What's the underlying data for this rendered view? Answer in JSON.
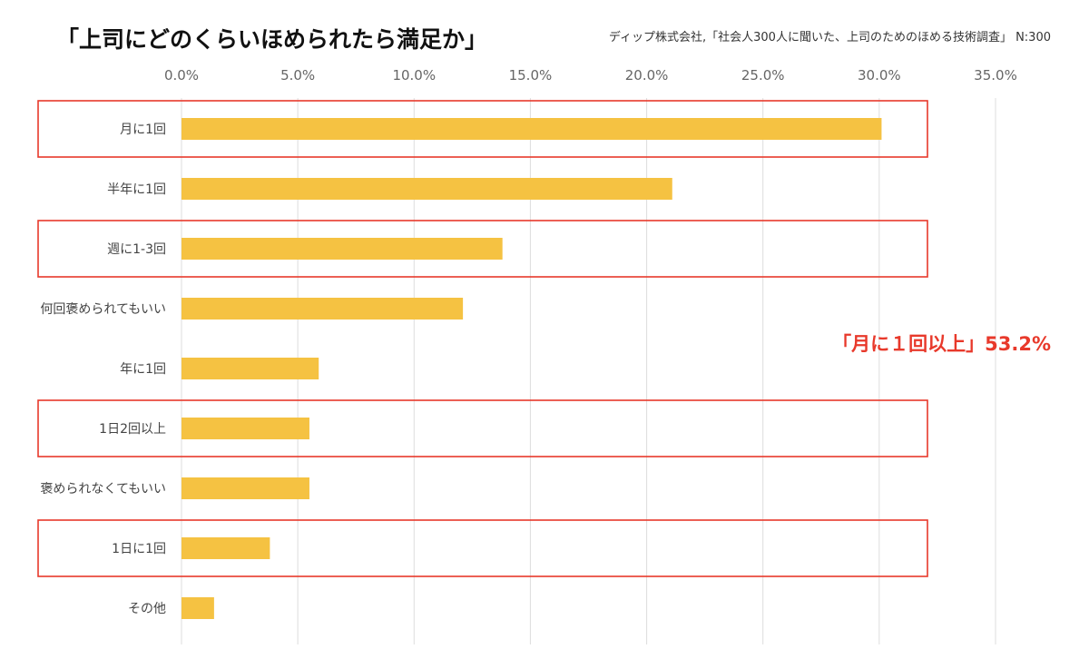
{
  "chart_data": {
    "type": "bar",
    "orientation": "horizontal",
    "title": "「上司にどのくらいほめられたら満足か」",
    "source": "ディップ株式会社,「社会人300人に聞いた、上司のためのほめる技術調査」 N:300",
    "categories": [
      "月に1回",
      "半年に1回",
      "週に1-3回",
      "何回褒められてもいい",
      "年に1回",
      "1日2回以上",
      "褒められなくてもいい",
      "1日に1回",
      "その他"
    ],
    "values": [
      30.1,
      21.1,
      13.8,
      12.1,
      5.9,
      5.5,
      5.5,
      3.8,
      1.4
    ],
    "value_unit": "%",
    "xlim": [
      0,
      35
    ],
    "x_ticks": [
      "0.0%",
      "5.0%",
      "10.0%",
      "15.0%",
      "20.0%",
      "25.0%",
      "30.0%",
      "35.0%"
    ],
    "x_tick_values": [
      0,
      5,
      10,
      15,
      20,
      25,
      30,
      35
    ],
    "grid": "vertical",
    "highlighted_categories": [
      "月に1回",
      "週に1-3回",
      "1日2回以上",
      "1日に1回"
    ],
    "annotation": "「月に１回以上」53.2%"
  },
  "colors": {
    "bar": "#f5c242",
    "highlight_box": "#e8392b",
    "annotation": "#e8392b",
    "grid": "#dddddd",
    "tick_text": "#666666",
    "category_text": "#444444"
  }
}
